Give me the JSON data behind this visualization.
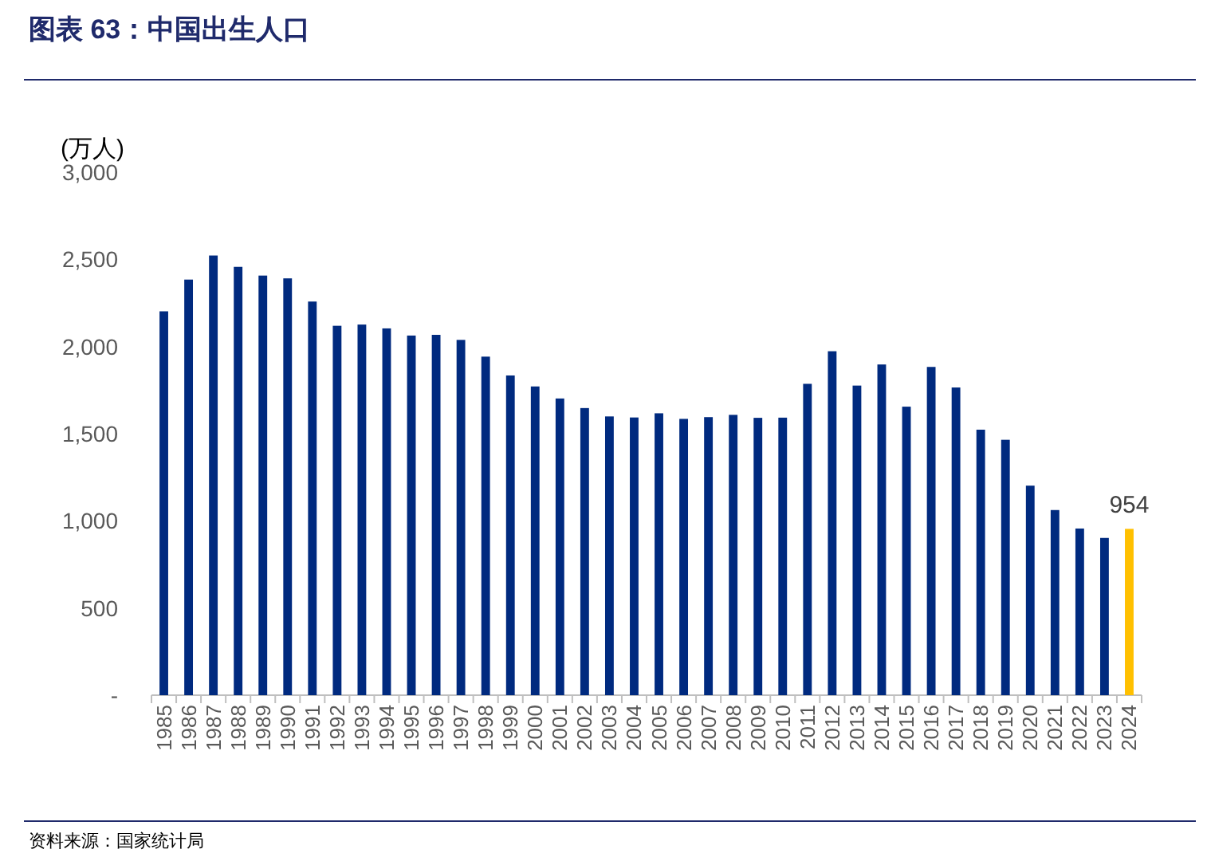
{
  "chart_data": {
    "type": "bar",
    "title": "图表 63：中国出生人口",
    "ylabel": "(万人)",
    "categories": [
      "1985",
      "1986",
      "1987",
      "1988",
      "1989",
      "1990",
      "1991",
      "1992",
      "1993",
      "1994",
      "1995",
      "1996",
      "1997",
      "1998",
      "1999",
      "2000",
      "2001",
      "2002",
      "2003",
      "2004",
      "2005",
      "2006",
      "2007",
      "2008",
      "2009",
      "2010",
      "2011",
      "2012",
      "2013",
      "2014",
      "2015",
      "2016",
      "2017",
      "2018",
      "2019",
      "2020",
      "2021",
      "2022",
      "2023",
      "2024"
    ],
    "values": [
      2202,
      2384,
      2522,
      2457,
      2407,
      2391,
      2258,
      2119,
      2126,
      2104,
      2063,
      2067,
      2038,
      1942,
      1834,
      1771,
      1702,
      1647,
      1599,
      1593,
      1617,
      1585,
      1595,
      1608,
      1591,
      1592,
      1786,
      1973,
      1776,
      1897,
      1655,
      1883,
      1765,
      1523,
      1465,
      1202,
      1062,
      956,
      902,
      954
    ],
    "colors": [
      "#002a7f",
      "#002a7f",
      "#002a7f",
      "#002a7f",
      "#002a7f",
      "#002a7f",
      "#002a7f",
      "#002a7f",
      "#002a7f",
      "#002a7f",
      "#002a7f",
      "#002a7f",
      "#002a7f",
      "#002a7f",
      "#002a7f",
      "#002a7f",
      "#002a7f",
      "#002a7f",
      "#002a7f",
      "#002a7f",
      "#002a7f",
      "#002a7f",
      "#002a7f",
      "#002a7f",
      "#002a7f",
      "#002a7f",
      "#002a7f",
      "#002a7f",
      "#002a7f",
      "#002a7f",
      "#002a7f",
      "#002a7f",
      "#002a7f",
      "#002a7f",
      "#002a7f",
      "#002a7f",
      "#002a7f",
      "#002a7f",
      "#002a7f",
      "#ffc000"
    ],
    "value_labels": [
      null,
      null,
      null,
      null,
      null,
      null,
      null,
      null,
      null,
      null,
      null,
      null,
      null,
      null,
      null,
      null,
      null,
      null,
      null,
      null,
      null,
      null,
      null,
      null,
      null,
      null,
      null,
      null,
      null,
      null,
      null,
      null,
      null,
      null,
      null,
      null,
      null,
      null,
      null,
      "954"
    ],
    "ylim": [
      0,
      3000
    ],
    "yticks": [
      {
        "value": 0,
        "label": "-"
      },
      {
        "value": 500,
        "label": "500"
      },
      {
        "value": 1000,
        "label": "1,000"
      },
      {
        "value": 1500,
        "label": "1,500"
      },
      {
        "value": 2000,
        "label": "2,000"
      },
      {
        "value": 2500,
        "label": "2,500"
      },
      {
        "value": 3000,
        "label": "3,000"
      }
    ],
    "annotations": [
      "资料来源：国家统计局"
    ]
  }
}
